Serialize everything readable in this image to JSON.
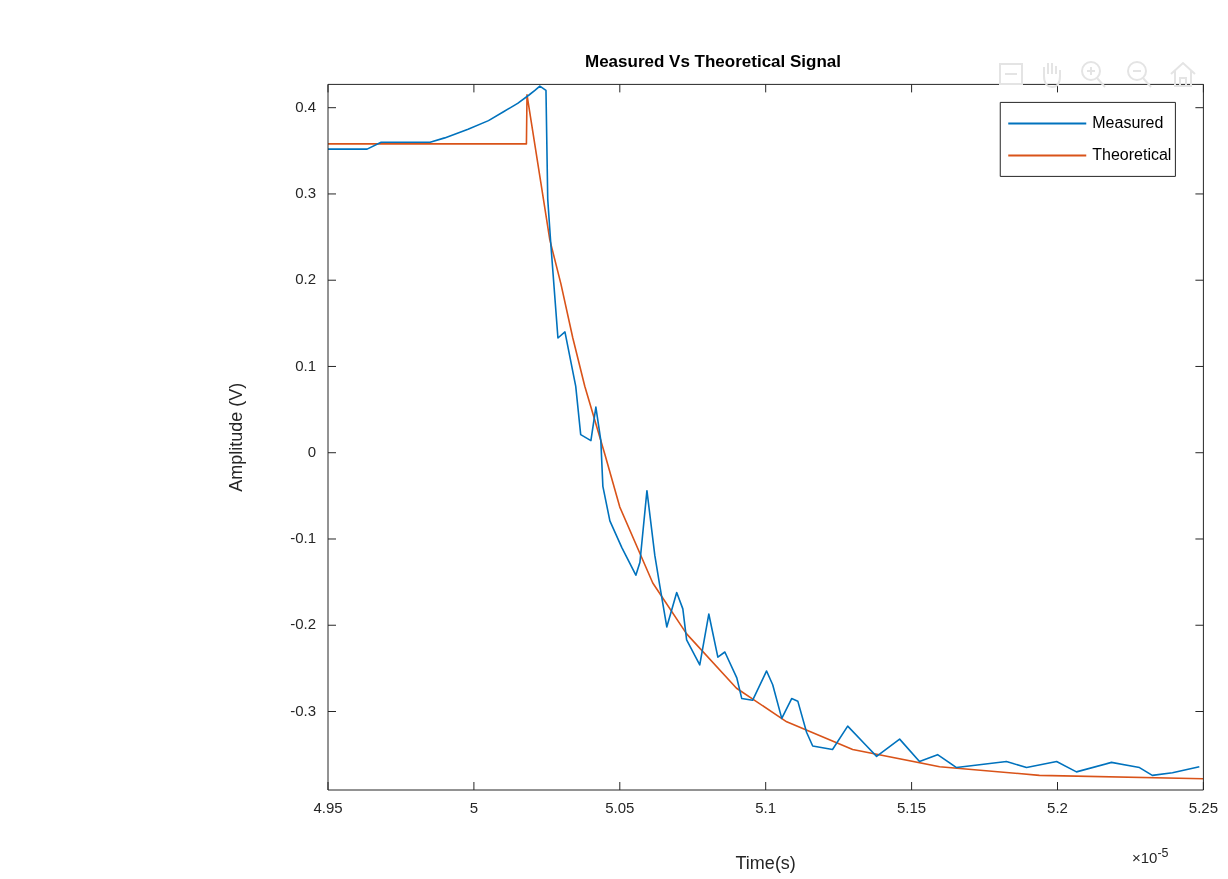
{
  "chart_data": {
    "type": "line",
    "title": "Measured Vs Theoretical Signal",
    "xlabel": "Time(s)",
    "ylabel": "Amplitude (V)",
    "annotations": [
      "×10$^{-5}$"
    ],
    "xlim": [
      4.95,
      5.25
    ],
    "xticks": [
      4.95,
      5,
      5.05,
      5.1,
      5.15,
      5.2,
      5.25
    ],
    "ylim": [
      -0.391,
      0.427
    ],
    "yticks": [
      -0.3,
      -0.2,
      -0.1,
      0,
      0.1,
      0.2,
      0.3,
      0.4
    ],
    "grid": false,
    "legend": "top right",
    "marker": "none",
    "line_style": "solid",
    "series": [
      {
        "name": "Measured",
        "color": "#0072bd",
        "x": [
          4.95,
          4.9634,
          4.9682,
          4.985,
          4.99,
          4.998,
          5.005,
          5.01,
          5.015,
          5.019,
          5.0209,
          5.0226,
          5.0247,
          5.0253,
          5.0264,
          5.0288,
          5.0312,
          5.0349,
          5.0366,
          5.0401,
          5.0418,
          5.0435,
          5.0442,
          5.0466,
          5.0507,
          5.0555,
          5.0569,
          5.0593,
          5.062,
          5.0637,
          5.0661,
          5.0695,
          5.0716,
          5.0729,
          5.0774,
          5.0805,
          5.0836,
          5.086,
          5.0901,
          5.0918,
          5.0955,
          5.1003,
          5.1024,
          5.1055,
          5.1089,
          5.111,
          5.114,
          5.1161,
          5.1229,
          5.1281,
          5.1346,
          5.138,
          5.1459,
          5.1527,
          5.1589,
          5.1654,
          5.1825,
          5.1894,
          5.1997,
          5.2065,
          5.2185,
          5.2281,
          5.2325,
          5.2394,
          5.2486
        ],
        "values": [
          0.352,
          0.352,
          0.36,
          0.36,
          0.365,
          0.375,
          0.385,
          0.395,
          0.405,
          0.415,
          0.42,
          0.425,
          0.42,
          0.294,
          0.24,
          0.133,
          0.14,
          0.077,
          0.021,
          0.014,
          0.053,
          0.014,
          -0.039,
          -0.079,
          -0.11,
          -0.142,
          -0.127,
          -0.044,
          -0.119,
          -0.154,
          -0.202,
          -0.162,
          -0.181,
          -0.217,
          -0.246,
          -0.187,
          -0.237,
          -0.231,
          -0.261,
          -0.285,
          -0.287,
          -0.253,
          -0.269,
          -0.308,
          -0.285,
          -0.288,
          -0.324,
          -0.34,
          -0.344,
          -0.317,
          -0.34,
          -0.352,
          -0.332,
          -0.358,
          -0.35,
          -0.365,
          -0.358,
          -0.365,
          -0.358,
          -0.37,
          -0.359,
          -0.365,
          -0.374,
          -0.371,
          -0.364
        ]
      },
      {
        "name": "Theoretical",
        "color": "#d95319",
        "x": [
          4.95,
          5.018,
          5.0182,
          5.0229,
          5.026,
          5.0298,
          5.0339,
          5.038,
          5.0449,
          5.05,
          5.0613,
          5.0729,
          5.09,
          5.1072,
          5.1298,
          5.1596,
          5.1938,
          5.25
        ],
        "values": [
          0.358,
          0.358,
          0.415,
          0.314,
          0.247,
          0.196,
          0.133,
          0.077,
          -0.002,
          -0.063,
          -0.151,
          -0.21,
          -0.273,
          -0.312,
          -0.344,
          -0.364,
          -0.374,
          -0.378
        ]
      }
    ]
  }
}
